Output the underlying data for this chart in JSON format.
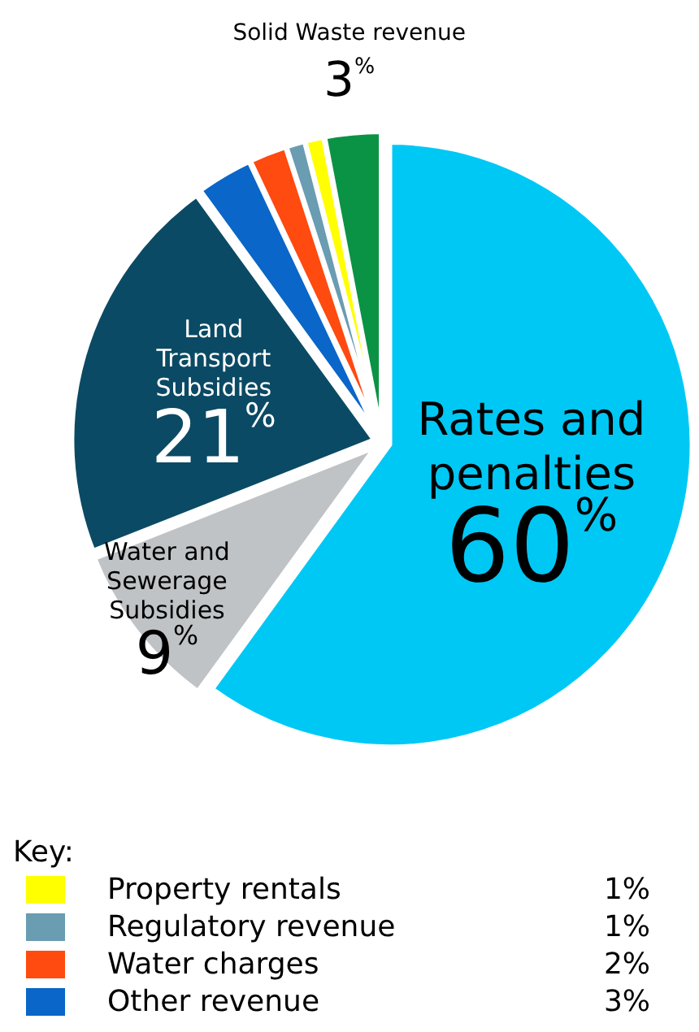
{
  "chart_data": {
    "type": "pie",
    "legend_title": "Key:",
    "legend": "bottom",
    "categories": [
      "Rates and penalties",
      "Water and Sewerage Subsidies",
      "Land Transport Subsidies",
      "Other revenue",
      "Water charges",
      "Regulatory revenue",
      "Property rentals",
      "Solid Waste revenue"
    ],
    "values": [
      60,
      9,
      21,
      3,
      2,
      1,
      1,
      3
    ],
    "colors": [
      "#00c8f5",
      "#bfc3c6",
      "#0b4a64",
      "#0a66c8",
      "#ff4a10",
      "#6a9cb2",
      "#ffff00",
      "#0a9344"
    ],
    "value_labels": [
      "60$^{%}$",
      "9$^{%}$",
      "21$^{%}$",
      "3%",
      "2%",
      "1%",
      "1%",
      "3$^{%}$"
    ]
  }
}
